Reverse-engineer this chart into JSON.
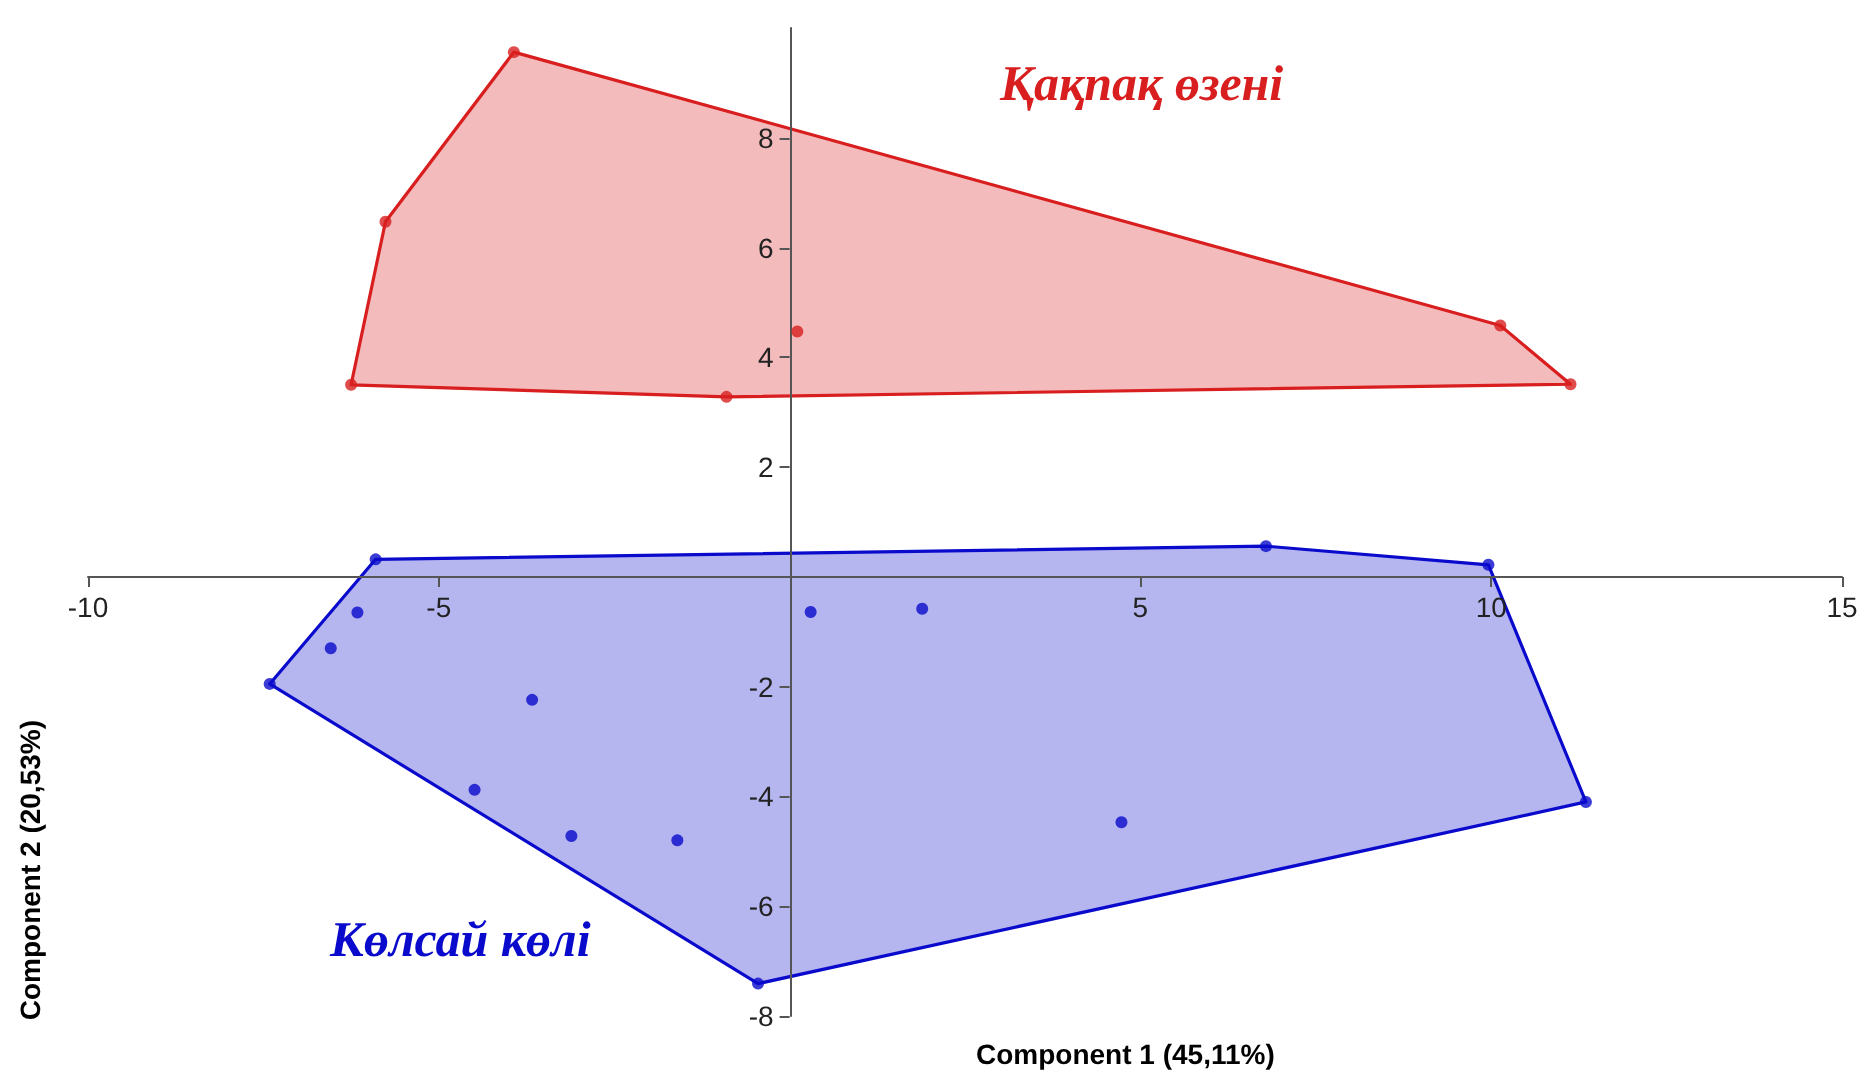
{
  "chart_data": {
    "type": "scatter",
    "xlabel": "Component 1 (45,11%)",
    "ylabel": "Component 2 (20,53%)",
    "xlim": [
      -10,
      15
    ],
    "ylim": [
      -8,
      10
    ],
    "xticks": [
      -10,
      -5,
      5,
      10,
      15
    ],
    "yticks": [
      -8,
      -6,
      -4,
      -2,
      2,
      4,
      6,
      8
    ],
    "grid": false,
    "legend": false,
    "marker": "circle",
    "series": [
      {
        "name": "Қақпақ өзені",
        "color": "#d81e1e",
        "x": [
          -3.93,
          -5.76,
          -6.25,
          -0.9,
          0.11,
          10.13,
          11.13
        ],
        "values": [
          9.56,
          6.47,
          3.5,
          3.28,
          4.47,
          4.58,
          3.51
        ]
      },
      {
        "name": "Көлсай көлі",
        "color": "#0a0acc",
        "x": [
          -5.9,
          -6.16,
          -6.54,
          -7.41,
          -3.67,
          -4.49,
          -3.11,
          -1.6,
          -0.45,
          0.3,
          1.89,
          6.79,
          9.96,
          11.35,
          4.73
        ],
        "values": [
          0.32,
          -0.65,
          -1.3,
          -1.95,
          -2.24,
          -3.88,
          -4.72,
          -4.8,
          -7.41,
          -0.64,
          -0.58,
          0.56,
          0.22,
          -4.1,
          -4.47
        ]
      }
    ]
  }
}
